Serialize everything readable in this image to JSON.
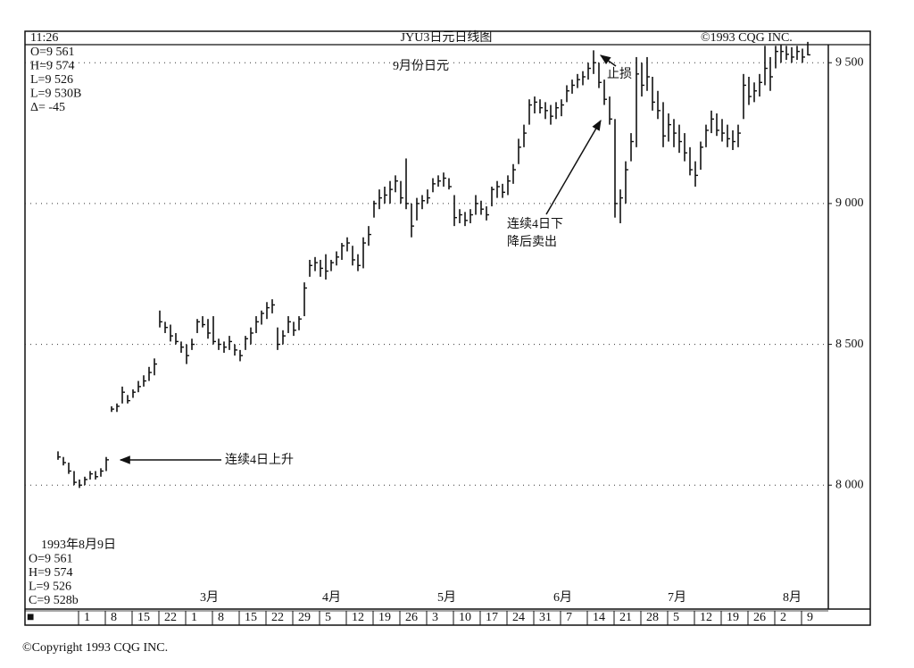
{
  "header": {
    "time": "11:26",
    "title": "JYU3日元日线图",
    "copyright": "©1993 CQG INC."
  },
  "info_top": [
    "O=9 561",
    "H=9 574",
    "L=9 526",
    "L=9 530B",
    "Δ=   -45"
  ],
  "info_bottom": [
    "1993年8月9日",
    "O=9 561",
    "H=9 574",
    "L=9 526",
    "C=9 528b"
  ],
  "footer": "©Copyright 1993 CQG INC.",
  "chart_data": {
    "type": "hlc",
    "subtitle": "9月份日元",
    "color": "#111111",
    "annotations": [
      "止损",
      "连续4日下",
      "降后卖出",
      "连续4日上升"
    ],
    "ylim": [
      7560,
      9580
    ],
    "yticks": [
      {
        "value": 8000,
        "label": "8 000"
      },
      {
        "value": 8500,
        "label": "8 500"
      },
      {
        "value": 9000,
        "label": "9 000"
      },
      {
        "value": 9500,
        "label": "9 500"
      }
    ],
    "grid": true,
    "months": [
      "3月",
      "4月",
      "5月",
      "6月",
      "7月",
      "8月"
    ],
    "weeks": [
      "■",
      "1",
      "8",
      "15",
      "22",
      "1",
      "8",
      "15",
      "22",
      "29",
      "5",
      "12",
      "19",
      "26",
      "3",
      "10",
      "17",
      "24",
      "31",
      "7",
      "14",
      "21",
      "28",
      "5",
      "12",
      "19",
      "26",
      "2",
      "9"
    ],
    "hlc": [
      [
        8120,
        8090,
        8100
      ],
      [
        8100,
        8070,
        8080
      ],
      [
        8080,
        8040,
        8050
      ],
      [
        8050,
        8000,
        8010
      ],
      [
        8020,
        7990,
        8000
      ],
      [
        8030,
        8000,
        8020
      ],
      [
        8050,
        8020,
        8040
      ],
      [
        8050,
        8020,
        8030
      ],
      [
        8060,
        8030,
        8050
      ],
      [
        8100,
        8050,
        8090
      ],
      [
        8280,
        8260,
        8270
      ],
      [
        8290,
        8260,
        8280
      ],
      [
        8350,
        8290,
        8330
      ],
      [
        8320,
        8290,
        8300
      ],
      [
        8340,
        8310,
        8330
      ],
      [
        8370,
        8330,
        8350
      ],
      [
        8390,
        8350,
        8370
      ],
      [
        8420,
        8370,
        8400
      ],
      [
        8450,
        8390,
        8430
      ],
      [
        8620,
        8560,
        8580
      ],
      [
        8580,
        8540,
        8560
      ],
      [
        8570,
        8510,
        8530
      ],
      [
        8540,
        8500,
        8510
      ],
      [
        8510,
        8470,
        8490
      ],
      [
        8500,
        8430,
        8460
      ],
      [
        8520,
        8480,
        8500
      ],
      [
        8590,
        8540,
        8580
      ],
      [
        8600,
        8560,
        8570
      ],
      [
        8590,
        8520,
        8540
      ],
      [
        8600,
        8500,
        8510
      ],
      [
        8520,
        8480,
        8500
      ],
      [
        8510,
        8470,
        8490
      ],
      [
        8530,
        8480,
        8510
      ],
      [
        8500,
        8460,
        8480
      ],
      [
        8480,
        8440,
        8460
      ],
      [
        8530,
        8480,
        8520
      ],
      [
        8560,
        8500,
        8540
      ],
      [
        8600,
        8540,
        8580
      ],
      [
        8620,
        8570,
        8610
      ],
      [
        8650,
        8590,
        8630
      ],
      [
        8660,
        8610,
        8640
      ],
      [
        8560,
        8480,
        8500
      ],
      [
        8550,
        8500,
        8530
      ],
      [
        8600,
        8540,
        8580
      ],
      [
        8580,
        8530,
        8550
      ],
      [
        8600,
        8550,
        8590
      ],
      [
        8720,
        8600,
        8700
      ],
      [
        8800,
        8740,
        8780
      ],
      [
        8810,
        8760,
        8790
      ],
      [
        8800,
        8740,
        8770
      ],
      [
        8820,
        8730,
        8760
      ],
      [
        8800,
        8760,
        8790
      ],
      [
        8830,
        8780,
        8810
      ],
      [
        8860,
        8800,
        8850
      ],
      [
        8880,
        8830,
        8860
      ],
      [
        8850,
        8780,
        8800
      ],
      [
        8820,
        8760,
        8780
      ],
      [
        8880,
        8770,
        8860
      ],
      [
        8920,
        8850,
        8890
      ],
      [
        9010,
        8950,
        9000
      ],
      [
        9050,
        8980,
        9020
      ],
      [
        9060,
        9000,
        9030
      ],
      [
        9080,
        9000,
        9050
      ],
      [
        9100,
        9040,
        9080
      ],
      [
        9080,
        9000,
        9020
      ],
      [
        9160,
        8980,
        9000
      ],
      [
        9000,
        8880,
        8920
      ],
      [
        9020,
        8940,
        9000
      ],
      [
        9030,
        8980,
        9010
      ],
      [
        9050,
        9000,
        9020
      ],
      [
        9090,
        9040,
        9070
      ],
      [
        9100,
        9060,
        9080
      ],
      [
        9110,
        9060,
        9090
      ],
      [
        9090,
        9050,
        9060
      ],
      [
        9030,
        8920,
        8950
      ],
      [
        8980,
        8930,
        8960
      ],
      [
        8970,
        8920,
        8940
      ],
      [
        8980,
        8930,
        8960
      ],
      [
        9030,
        8960,
        9000
      ],
      [
        9010,
        8960,
        8980
      ],
      [
        8990,
        8940,
        8960
      ],
      [
        9060,
        8990,
        9050
      ],
      [
        9080,
        9020,
        9060
      ],
      [
        9070,
        9020,
        9040
      ],
      [
        9100,
        9030,
        9080
      ],
      [
        9140,
        9070,
        9120
      ],
      [
        9230,
        9140,
        9200
      ],
      [
        9280,
        9200,
        9250
      ],
      [
        9370,
        9280,
        9350
      ],
      [
        9380,
        9320,
        9360
      ],
      [
        9370,
        9320,
        9340
      ],
      [
        9360,
        9300,
        9330
      ],
      [
        9350,
        9280,
        9310
      ],
      [
        9360,
        9300,
        9340
      ],
      [
        9370,
        9310,
        9350
      ],
      [
        9420,
        9360,
        9400
      ],
      [
        9440,
        9390,
        9420
      ],
      [
        9460,
        9410,
        9440
      ],
      [
        9470,
        9420,
        9450
      ],
      [
        9500,
        9440,
        9480
      ],
      [
        9544,
        9460,
        9500
      ],
      [
        9500,
        9410,
        9430
      ],
      [
        9440,
        9350,
        9370
      ],
      [
        9380,
        9280,
        9300
      ],
      [
        9300,
        8950,
        9000
      ],
      [
        9050,
        8930,
        9020
      ],
      [
        9150,
        9000,
        9120
      ],
      [
        9250,
        9150,
        9220
      ],
      [
        9520,
        9200,
        9460
      ],
      [
        9500,
        9380,
        9420
      ],
      [
        9520,
        9400,
        9450
      ],
      [
        9450,
        9330,
        9360
      ],
      [
        9400,
        9300,
        9330
      ],
      [
        9360,
        9200,
        9240
      ],
      [
        9320,
        9220,
        9280
      ],
      [
        9300,
        9200,
        9250
      ],
      [
        9280,
        9180,
        9220
      ],
      [
        9250,
        9150,
        9180
      ],
      [
        9200,
        9100,
        9120
      ],
      [
        9150,
        9060,
        9100
      ],
      [
        9220,
        9120,
        9200
      ],
      [
        9280,
        9200,
        9260
      ],
      [
        9330,
        9250,
        9300
      ],
      [
        9320,
        9240,
        9260
      ],
      [
        9300,
        9220,
        9250
      ],
      [
        9280,
        9200,
        9230
      ],
      [
        9260,
        9190,
        9220
      ],
      [
        9280,
        9200,
        9250
      ],
      [
        9460,
        9300,
        9420
      ],
      [
        9450,
        9350,
        9380
      ],
      [
        9430,
        9360,
        9400
      ],
      [
        9460,
        9380,
        9430
      ],
      [
        9560,
        9420,
        9480
      ],
      [
        9520,
        9400,
        9450
      ],
      [
        9560,
        9480,
        9540
      ],
      [
        9565,
        9500,
        9540
      ],
      [
        9560,
        9510,
        9530
      ],
      [
        9555,
        9500,
        9520
      ],
      [
        9560,
        9510,
        9540
      ],
      [
        9550,
        9500,
        9520
      ],
      [
        9574,
        9526,
        9528
      ]
    ]
  }
}
